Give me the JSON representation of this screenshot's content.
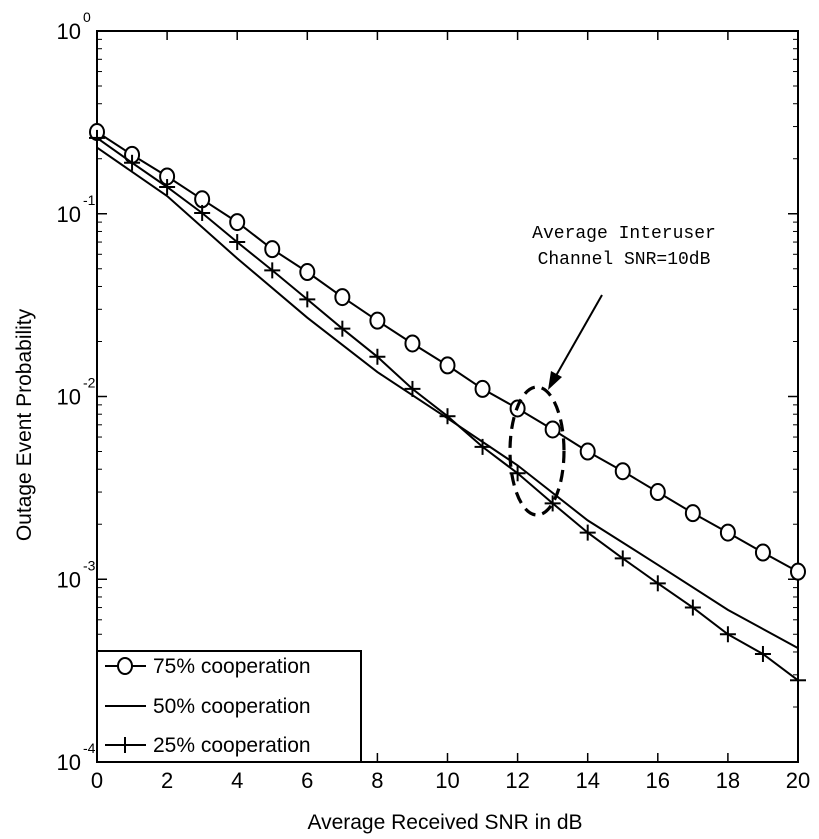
{
  "chart_data": {
    "type": "line",
    "title": "",
    "xlabel": "Average Received SNR in dB",
    "ylabel": "Outage Event Probability",
    "xlim": [
      0,
      20
    ],
    "ylim": [
      0.0001,
      1
    ],
    "yscale": "log",
    "grid": false,
    "x_ticks": [
      "0",
      "2",
      "4",
      "6",
      "8",
      "10",
      "12",
      "14",
      "16",
      "18",
      "20"
    ],
    "y_ticks": [
      {
        "base": "10",
        "exp": "0"
      },
      {
        "base": "10",
        "exp": "-1"
      },
      {
        "base": "10",
        "exp": "-2"
      },
      {
        "base": "10",
        "exp": "-3"
      },
      {
        "base": "10",
        "exp": "-4"
      }
    ],
    "legend_position": "bottom-left",
    "series": [
      {
        "name": "75% cooperation",
        "marker": "circle",
        "x": [
          0,
          1,
          2,
          3,
          4,
          5,
          6,
          7,
          8,
          9,
          10,
          11,
          12,
          13,
          14,
          15,
          16,
          17,
          18,
          19,
          20
        ],
        "y": [
          0.28,
          0.21,
          0.16,
          0.12,
          0.09,
          0.064,
          0.048,
          0.035,
          0.026,
          0.0195,
          0.0148,
          0.011,
          0.0086,
          0.0066,
          0.005,
          0.0039,
          0.003,
          0.0023,
          0.0018,
          0.0014,
          0.0011
        ]
      },
      {
        "name": "50% cooperation",
        "marker": "none",
        "x": [
          0,
          2,
          4,
          6,
          8,
          10,
          12,
          14,
          16,
          18,
          20
        ],
        "y": [
          0.23,
          0.125,
          0.057,
          0.027,
          0.0136,
          0.0076,
          0.0042,
          0.0021,
          0.0012,
          0.00068,
          0.00042
        ]
      },
      {
        "name": "25% cooperation",
        "marker": "plus",
        "x": [
          0,
          1,
          2,
          3,
          4,
          5,
          6,
          7,
          8,
          9,
          10,
          11,
          12,
          13,
          14,
          15,
          16,
          17,
          18,
          19,
          20
        ],
        "y": [
          0.26,
          0.19,
          0.14,
          0.101,
          0.07,
          0.049,
          0.034,
          0.0235,
          0.0165,
          0.011,
          0.0078,
          0.0053,
          0.0038,
          0.0026,
          0.0018,
          0.0013,
          0.00095,
          0.0007,
          0.0005,
          0.00039,
          0.00028
        ]
      }
    ],
    "annotation": {
      "lines": [
        "Average Interuser",
        "Channel SNR=10dB"
      ]
    }
  }
}
